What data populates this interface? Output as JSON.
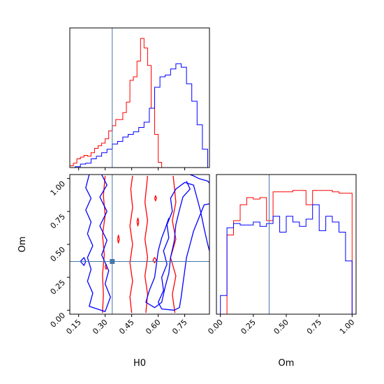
{
  "chart_data": [
    {
      "panel": "H0 marginal",
      "type": "histogram",
      "x_range": [
        0.1,
        0.89
      ],
      "truth": 0.34,
      "series": [
        {
          "color": "#ff0000",
          "bin_edges": [
            0.1,
            0.12,
            0.14,
            0.16,
            0.18,
            0.2,
            0.22,
            0.24,
            0.26,
            0.28,
            0.3,
            0.32,
            0.34,
            0.36,
            0.38,
            0.4,
            0.42,
            0.44,
            0.46,
            0.48,
            0.5,
            0.52,
            0.54,
            0.56,
            0.58,
            0.6,
            0.62
          ],
          "counts": [
            2,
            5,
            10,
            12,
            14,
            13,
            17,
            22,
            25,
            28,
            33,
            42,
            48,
            55,
            55,
            63,
            75,
            100,
            104,
            122,
            148,
            137,
            117,
            68,
            38,
            6
          ]
        },
        {
          "color": "#0000ff",
          "bin_edges": [
            0.13,
            0.16,
            0.19,
            0.22,
            0.25,
            0.28,
            0.31,
            0.34,
            0.37,
            0.4,
            0.43,
            0.46,
            0.49,
            0.52,
            0.55,
            0.58,
            0.61,
            0.64,
            0.67,
            0.7,
            0.73,
            0.76,
            0.79,
            0.82,
            0.85,
            0.88
          ],
          "counts": [
            1,
            4,
            5,
            10,
            13,
            17,
            21,
            27,
            30,
            35,
            38,
            41,
            46,
            52,
            68,
            92,
            104,
            106,
            113,
            119,
            115,
            96,
            76,
            49,
            21
          ]
        }
      ]
    },
    {
      "panel": "Om vs H0 (2D contours)",
      "type": "contour",
      "x_range": [
        0.1,
        0.89
      ],
      "y_range": [
        -0.03,
        1.03
      ],
      "xlabel": "H0",
      "ylabel": "Om",
      "x_ticks": [
        "0.15",
        "0.30",
        "0.45",
        "0.60",
        "0.75"
      ],
      "y_ticks": [
        "0.00",
        "0.25",
        "0.50",
        "0.75",
        "1.00"
      ],
      "truth_point": [
        0.34,
        0.37
      ],
      "series": [
        {
          "color": "#ff0000",
          "contours": [
            [
              [
                0.285,
                -0.02
              ],
              [
                0.29,
                0.12
              ],
              [
                0.285,
                0.27
              ],
              [
                0.295,
                0.42
              ],
              [
                0.285,
                0.57
              ],
              [
                0.3,
                0.72
              ],
              [
                0.29,
                0.87
              ],
              [
                0.3,
                1.02
              ]
            ],
            [
              [
                0.45,
                -0.02
              ],
              [
                0.44,
                0.1
              ],
              [
                0.455,
                0.22
              ],
              [
                0.44,
                0.36
              ],
              [
                0.455,
                0.5
              ],
              [
                0.44,
                0.64
              ],
              [
                0.455,
                0.78
              ],
              [
                0.445,
                0.92
              ],
              [
                0.455,
                1.02
              ]
            ],
            [
              [
                0.53,
                -0.02
              ],
              [
                0.54,
                0.12
              ],
              [
                0.525,
                0.26
              ],
              [
                0.54,
                0.4
              ],
              [
                0.525,
                0.54
              ],
              [
                0.54,
                0.68
              ],
              [
                0.525,
                0.82
              ],
              [
                0.54,
                1.02
              ]
            ],
            [
              [
                0.695,
                -0.02
              ],
              [
                0.68,
                0.12
              ],
              [
                0.7,
                0.26
              ],
              [
                0.67,
                0.4
              ],
              [
                0.7,
                0.54
              ],
              [
                0.68,
                0.68
              ],
              [
                0.7,
                0.82
              ],
              [
                0.685,
                1.02
              ]
            ],
            [
              [
                0.57,
                0.38
              ],
              [
                0.58,
                0.36
              ],
              [
                0.59,
                0.38
              ],
              [
                0.58,
                0.4
              ],
              [
                0.57,
                0.38
              ]
            ],
            [
              [
                0.48,
                0.67
              ],
              [
                0.485,
                0.64
              ],
              [
                0.49,
                0.67
              ],
              [
                0.485,
                0.7
              ],
              [
                0.48,
                0.67
              ]
            ],
            [
              [
                0.37,
                0.54
              ],
              [
                0.375,
                0.51
              ],
              [
                0.38,
                0.54
              ],
              [
                0.375,
                0.57
              ],
              [
                0.37,
                0.54
              ]
            ],
            [
              [
                0.58,
                0.85
              ],
              [
                0.585,
                0.83
              ],
              [
                0.59,
                0.85
              ],
              [
                0.585,
                0.87
              ],
              [
                0.58,
                0.85
              ]
            ],
            [
              [
                0.3,
                0.33
              ],
              [
                0.305,
                0.31
              ],
              [
                0.31,
                0.33
              ],
              [
                0.305,
                0.35
              ],
              [
                0.3,
                0.33
              ]
            ]
          ]
        },
        {
          "color": "#0000ff",
          "contours": [
            [
              [
                0.21,
                1.03
              ],
              [
                0.19,
                0.93
              ],
              [
                0.22,
                0.85
              ],
              [
                0.19,
                0.76
              ],
              [
                0.22,
                0.67
              ],
              [
                0.2,
                0.58
              ],
              [
                0.23,
                0.49
              ],
              [
                0.2,
                0.4
              ],
              [
                0.22,
                0.31
              ],
              [
                0.2,
                0.22
              ],
              [
                0.23,
                0.13
              ],
              [
                0.21,
                0.03
              ],
              [
                0.3,
                -0.01
              ],
              [
                0.33,
                0.1
              ],
              [
                0.3,
                0.2
              ],
              [
                0.32,
                0.3
              ],
              [
                0.28,
                0.42
              ],
              [
                0.31,
                0.53
              ],
              [
                0.27,
                0.64
              ],
              [
                0.31,
                0.75
              ],
              [
                0.27,
                0.86
              ],
              [
                0.31,
                0.95
              ],
              [
                0.28,
                1.03
              ]
            ],
            [
              [
                0.16,
                0.37
              ],
              [
                0.18,
                0.34
              ],
              [
                0.19,
                0.37
              ],
              [
                0.18,
                0.4
              ],
              [
                0.16,
                0.37
              ]
            ],
            [
              [
                0.9,
                0.81
              ],
              [
                0.86,
                0.8
              ],
              [
                0.83,
                0.7
              ],
              [
                0.8,
                0.6
              ],
              [
                0.78,
                0.5
              ],
              [
                0.76,
                0.4
              ],
              [
                0.75,
                0.3
              ],
              [
                0.74,
                0.2
              ],
              [
                0.73,
                0.1
              ],
              [
                0.72,
                0.02
              ],
              [
                0.69,
                0.0
              ],
              [
                0.62,
                0.01
              ],
              [
                0.6,
                0.06
              ],
              [
                0.63,
                0.15
              ],
              [
                0.62,
                0.25
              ],
              [
                0.65,
                0.35
              ],
              [
                0.63,
                0.45
              ],
              [
                0.66,
                0.55
              ],
              [
                0.65,
                0.65
              ],
              [
                0.68,
                0.75
              ],
              [
                0.67,
                0.85
              ],
              [
                0.7,
                0.92
              ],
              [
                0.75,
                0.97
              ],
              [
                0.8,
                0.95
              ],
              [
                0.82,
                0.85
              ],
              [
                0.84,
                0.75
              ],
              [
                0.86,
                0.62
              ],
              [
                0.88,
                0.5
              ],
              [
                0.9,
                0.4
              ]
            ],
            [
              [
                0.9,
                0.95
              ],
              [
                0.88,
                0.98
              ],
              [
                0.83,
                1.0
              ],
              [
                0.8,
                1.02
              ],
              [
                0.78,
                1.03
              ]
            ],
            [
              [
                0.66,
                0.7
              ],
              [
                0.64,
                0.62
              ],
              [
                0.62,
                0.55
              ],
              [
                0.6,
                0.45
              ],
              [
                0.59,
                0.35
              ],
              [
                0.58,
                0.25
              ],
              [
                0.55,
                0.15
              ],
              [
                0.53,
                0.06
              ],
              [
                0.58,
                0.02
              ],
              [
                0.62,
                0.06
              ],
              [
                0.64,
                0.18
              ],
              [
                0.66,
                0.28
              ],
              [
                0.67,
                0.4
              ],
              [
                0.69,
                0.52
              ],
              [
                0.7,
                0.65
              ],
              [
                0.72,
                0.76
              ],
              [
                0.74,
                0.86
              ],
              [
                0.78,
                0.92
              ],
              [
                0.76,
                0.98
              ]
            ]
          ]
        }
      ]
    },
    {
      "panel": "Om marginal",
      "type": "histogram",
      "x_range": [
        -0.03,
        1.03
      ],
      "xlabel": "Om",
      "x_ticks": [
        "0.00",
        "0.25",
        "0.50",
        "0.75",
        "1.00"
      ],
      "truth": 0.37,
      "series": [
        {
          "color": "#ff0000",
          "bin_edges": [
            0.0,
            0.05,
            0.1,
            0.15,
            0.2,
            0.25,
            0.3,
            0.35,
            0.4,
            0.45,
            0.5,
            0.55,
            0.6,
            0.65,
            0.7,
            0.75,
            0.8,
            0.85,
            0.9,
            0.95,
            1.0
          ],
          "counts": [
            0,
            55,
            65,
            76,
            81,
            80,
            81,
            65,
            85,
            85,
            85,
            86,
            86,
            76,
            86,
            86,
            86,
            85,
            84,
            84
          ]
        },
        {
          "color": "#0000ff",
          "bin_edges": [
            0.0,
            0.05,
            0.1,
            0.15,
            0.2,
            0.25,
            0.3,
            0.35,
            0.4,
            0.45,
            0.5,
            0.55,
            0.6,
            0.65,
            0.7,
            0.75,
            0.8,
            0.85,
            0.9,
            0.95,
            1.0
          ],
          "counts": [
            13,
            60,
            63,
            62,
            62,
            64,
            61,
            63,
            68,
            57,
            68,
            64,
            61,
            66,
            76,
            58,
            68,
            64,
            57,
            37
          ]
        }
      ]
    }
  ],
  "truth_color": "#4477aa"
}
